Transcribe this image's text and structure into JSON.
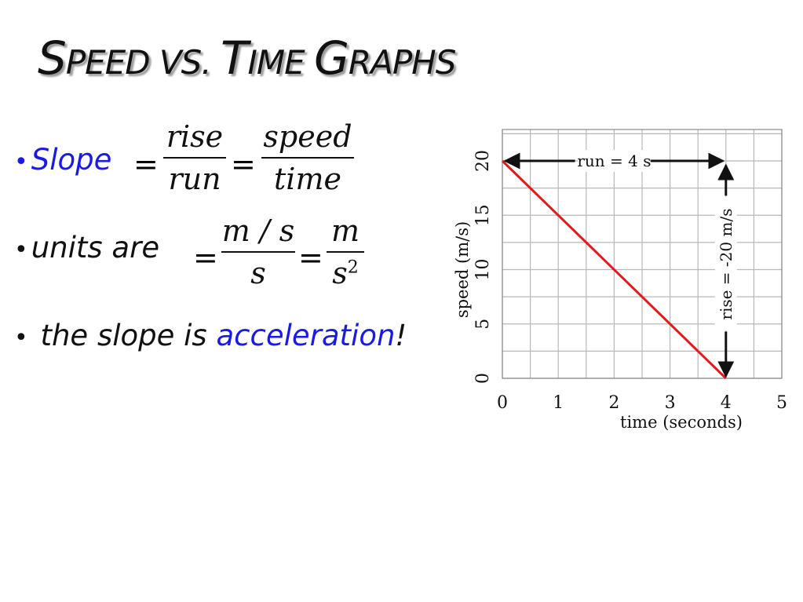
{
  "slide": {
    "title_parts": [
      {
        "text": "S",
        "size": "big"
      },
      {
        "text": "PEED VS. ",
        "size": "sm"
      },
      {
        "text": "T",
        "size": "big"
      },
      {
        "text": "IME ",
        "size": "sm"
      },
      {
        "text": "G",
        "size": "big"
      },
      {
        "text": "RAPHS",
        "size": "sm"
      }
    ],
    "bullet1": {
      "label": "Slope",
      "eq1": "=",
      "frac1_num": "rise",
      "frac1_den": "run",
      "eq2": "=",
      "frac2_num": "speed",
      "frac2_den": "time"
    },
    "bullet2": {
      "label": "units are",
      "eq1": "=",
      "frac1_num": "m / s",
      "frac1_den": "s",
      "eq2": "=",
      "frac2_num": "m",
      "frac2_den": "s",
      "frac2_den_exp": "2"
    },
    "bullet3": {
      "prefix": "the slope is ",
      "highlight": "acceleration",
      "suffix": "!"
    },
    "colors": {
      "accent": "#1a1ae6",
      "line": "#e01b1b",
      "grid": "#b8b8b8"
    }
  },
  "chart_data": {
    "type": "line",
    "x": [
      0,
      4
    ],
    "series": [
      {
        "values": [
          20,
          0
        ]
      }
    ],
    "xlabel": "time (seconds)",
    "ylabel": "speed (m/s)",
    "xlim": [
      0,
      5
    ],
    "ylim": [
      0,
      20
    ],
    "xticks": [
      "0",
      "1",
      "2",
      "3",
      "4",
      "5"
    ],
    "yticks": [
      "0",
      "5",
      "10",
      "15",
      "20"
    ],
    "grid": true,
    "annotations": {
      "run": "run = 4 s",
      "rise": "rise = -20 m/s"
    }
  }
}
